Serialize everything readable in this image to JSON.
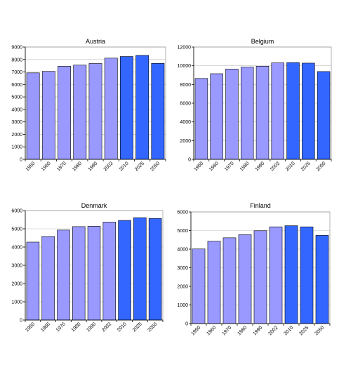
{
  "colors": {
    "light_bar": "#9999ff",
    "dark_bar": "#3366ff",
    "grid": "#c0c0c0",
    "frame": "#808080"
  },
  "chart_data": [
    {
      "type": "bar",
      "title": "Austria",
      "categories": [
        "1950",
        "1960",
        "1970",
        "1980",
        "1990",
        "2002",
        "2010",
        "2025",
        "2050"
      ],
      "values": [
        6930,
        7050,
        7460,
        7550,
        7680,
        8110,
        8240,
        8330,
        7690
      ],
      "bar_shade": [
        "light",
        "light",
        "light",
        "light",
        "light",
        "light",
        "dark",
        "dark",
        "dark"
      ],
      "ylim": [
        0,
        9000
      ],
      "yticks": [
        0,
        1000,
        2000,
        3000,
        4000,
        5000,
        6000,
        7000,
        8000,
        9000
      ],
      "grid": true,
      "xlabel": "",
      "ylabel": ""
    },
    {
      "type": "bar",
      "title": "Belgium",
      "categories": [
        "1950",
        "1960",
        "1970",
        "1980",
        "1990",
        "2002",
        "2010",
        "2025",
        "2050"
      ],
      "values": [
        8640,
        9150,
        9650,
        9860,
        9950,
        10310,
        10340,
        10280,
        9380
      ],
      "bar_shade": [
        "light",
        "light",
        "light",
        "light",
        "light",
        "light",
        "dark",
        "dark",
        "dark"
      ],
      "ylim": [
        0,
        12000
      ],
      "yticks": [
        0,
        2000,
        4000,
        6000,
        8000,
        10000,
        12000
      ],
      "grid": true,
      "xlabel": "",
      "ylabel": ""
    },
    {
      "type": "bar",
      "title": "Denmark",
      "categories": [
        "1950",
        "1960",
        "1970",
        "1980",
        "1990",
        "2002",
        "2010",
        "2025",
        "2050"
      ],
      "values": [
        4270,
        4580,
        4930,
        5120,
        5140,
        5370,
        5460,
        5610,
        5570
      ],
      "bar_shade": [
        "light",
        "light",
        "light",
        "light",
        "light",
        "light",
        "dark",
        "dark",
        "dark"
      ],
      "ylim": [
        0,
        6000
      ],
      "yticks": [
        0,
        1000,
        2000,
        3000,
        4000,
        5000,
        6000
      ],
      "grid": true,
      "xlabel": "",
      "ylabel": ""
    },
    {
      "type": "bar",
      "title": "Finland",
      "categories": [
        "1950",
        "1960",
        "1970",
        "1980",
        "1990",
        "2002",
        "2010",
        "2025",
        "2050"
      ],
      "values": [
        4010,
        4430,
        4610,
        4780,
        4990,
        5200,
        5260,
        5200,
        4740
      ],
      "bar_shade": [
        "light",
        "light",
        "light",
        "light",
        "light",
        "light",
        "dark",
        "dark",
        "dark"
      ],
      "ylim": [
        0,
        6000
      ],
      "yticks": [
        0,
        1000,
        2000,
        3000,
        4000,
        5000,
        6000
      ],
      "grid": true,
      "xlabel": "",
      "ylabel": ""
    }
  ]
}
